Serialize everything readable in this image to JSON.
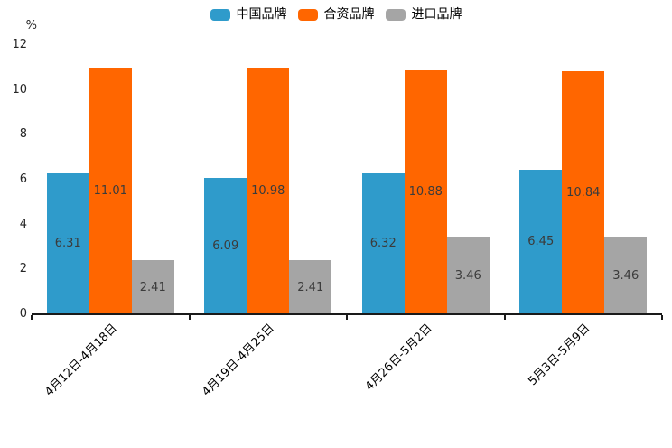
{
  "chart_data": {
    "type": "bar",
    "title": "",
    "xlabel": "",
    "ylabel": "%",
    "categories": [
      "4月12日-4月18日",
      "4月19日-4月25日",
      "4月26日-5月2日",
      "5月3日-5月9日"
    ],
    "series": [
      {
        "name": "中国品牌",
        "color": "#2F9BCB",
        "values": [
          6.31,
          6.09,
          6.32,
          6.45
        ]
      },
      {
        "name": "合资品牌",
        "color": "#FF6600",
        "values": [
          11.01,
          10.98,
          10.88,
          10.84
        ]
      },
      {
        "name": "进口品牌",
        "color": "#A5A5A5",
        "values": [
          2.41,
          2.41,
          3.46,
          3.46
        ]
      }
    ],
    "ylim": [
      0,
      12
    ],
    "yticks": [
      0,
      2,
      4,
      6,
      8,
      10,
      12
    ],
    "legend_position": "top-center",
    "grid": false,
    "value_label_format": "two decimals, centered inside each bar"
  },
  "colors": {
    "axis": "#1A1A1A",
    "bar_value_text": "#3B3B3B",
    "tick_text": "#262626"
  }
}
